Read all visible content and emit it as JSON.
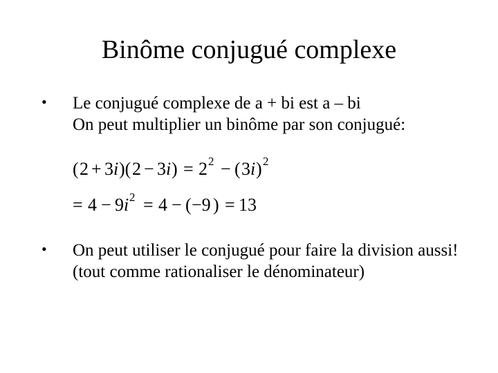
{
  "background_color": "#ffffff",
  "text_color": "#000000",
  "font_family": "Times New Roman",
  "title": {
    "text": "Binôme conjugué complexe",
    "fontsize": 38,
    "align": "center"
  },
  "bullets": [
    {
      "line1": "Le conjugué complexe de a + bi  est     a – bi",
      "line2": "On peut multiplier un binôme par son conjugué:"
    },
    {
      "line1": "On peut utiliser le conjugué pour faire la division aussi!",
      "line2": "(tout comme rationaliser le dénominateur)"
    }
  ],
  "math": {
    "eq1": {
      "lhs_factor1_a": "2",
      "lhs_factor1_sign": "+",
      "lhs_factor1_b": "3",
      "lhs_factor2_a": "2",
      "lhs_factor2_sign": "−",
      "lhs_factor2_b": "3",
      "rhs_term1_base": "2",
      "rhs_term1_exp": "2",
      "rhs_term2_base": "3",
      "rhs_term2_exp": "2"
    },
    "eq2": {
      "term1": "4",
      "term2_coef": "9",
      "term2_exp": "2",
      "mid1": "4",
      "mid2": "−9",
      "result": "13"
    },
    "fontsize": 26,
    "color": "#000000"
  }
}
